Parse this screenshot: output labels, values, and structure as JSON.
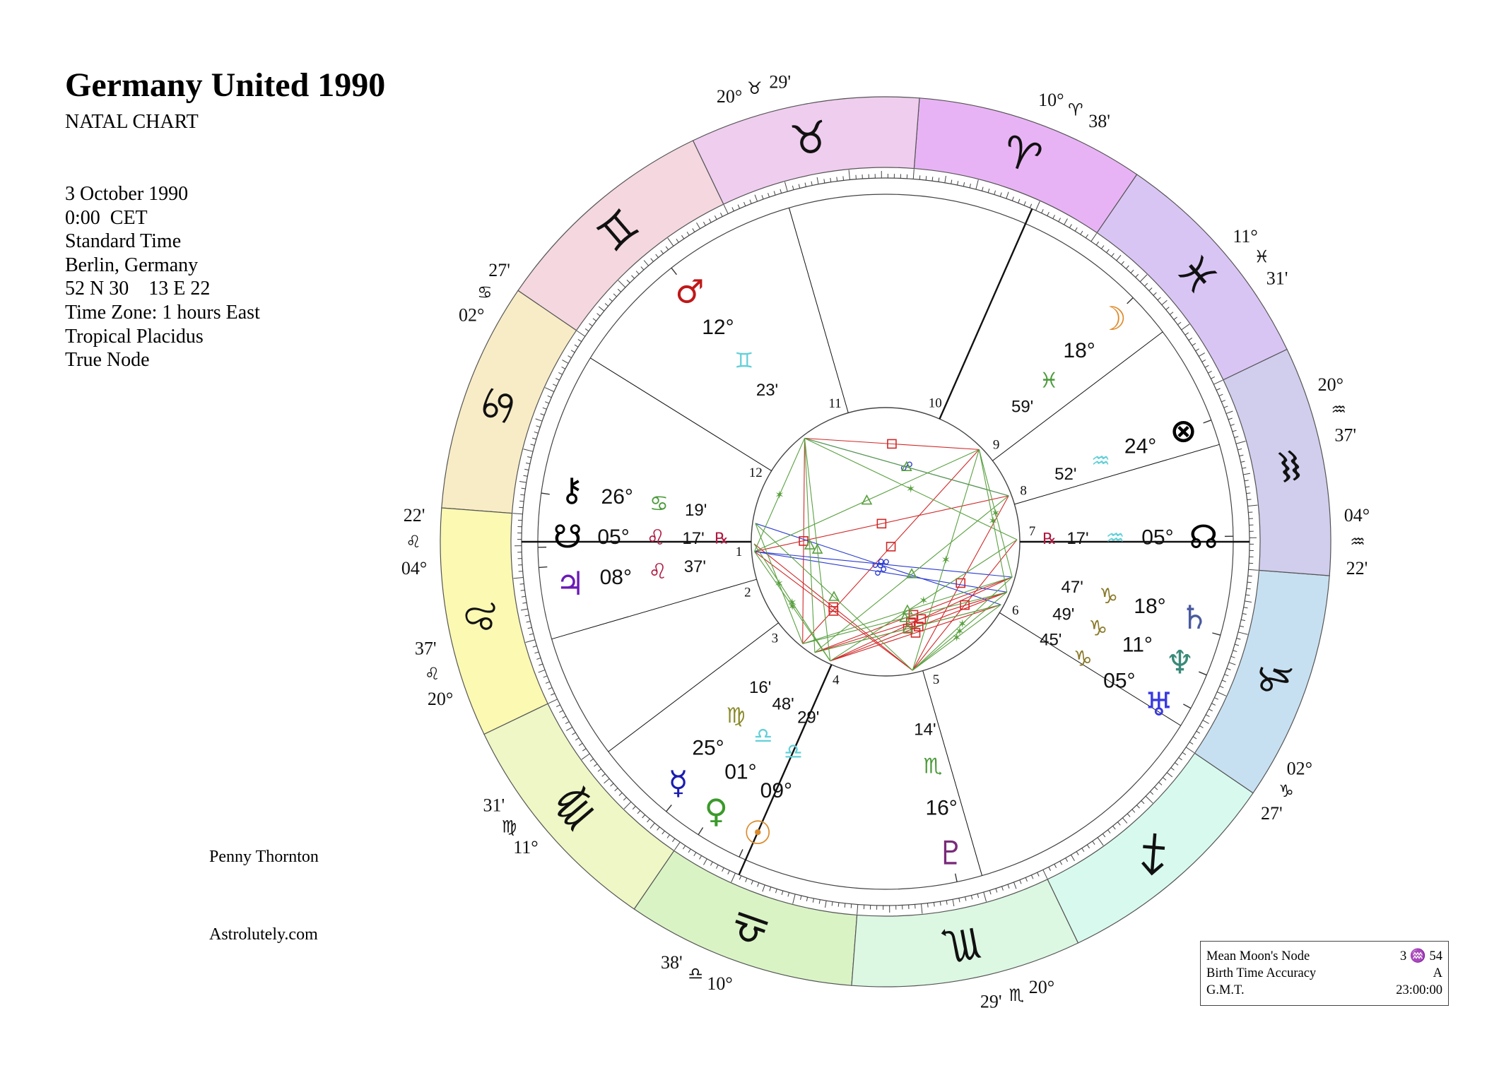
{
  "header": {
    "title": "Germany United 1990",
    "subtitle": "NATAL CHART"
  },
  "details": [
    "3 October 1990",
    "0:00  CET",
    "Standard Time",
    "Berlin, Germany",
    "52 N 30    13 E 22",
    "Time Zone: 1 hours East",
    "Tropical Placidus",
    "True Node"
  ],
  "footer": {
    "author": "Penny Thornton",
    "site": "Astrolutely.com"
  },
  "info_box": [
    {
      "label": "Mean Moon's Node",
      "value": "3 ♒ 54"
    },
    {
      "label": "Birth Time Accuracy",
      "value": "A"
    },
    {
      "label": "G.M.T.",
      "value": "23:00:00"
    }
  ],
  "ascendant_longitude": 124.37,
  "zodiac": [
    {
      "sign": "Aries",
      "glyph": "♈",
      "color": "#e8b3f5"
    },
    {
      "sign": "Taurus",
      "glyph": "♉",
      "color": "#efcdee"
    },
    {
      "sign": "Gemini",
      "glyph": "♊",
      "color": "#f4d7df"
    },
    {
      "sign": "Cancer",
      "glyph": "♋",
      "color": "#f8ecc6"
    },
    {
      "sign": "Leo",
      "glyph": "♌",
      "color": "#fbf9b2"
    },
    {
      "sign": "Virgo",
      "glyph": "♍",
      "color": "#eef7c5"
    },
    {
      "sign": "Libra",
      "glyph": "♎",
      "color": "#d9f3c5"
    },
    {
      "sign": "Scorpio",
      "glyph": "♏",
      "color": "#dcf7e2"
    },
    {
      "sign": "Sagittarius",
      "glyph": "♐",
      "color": "#d8faee"
    },
    {
      "sign": "Capricorn",
      "glyph": "♑",
      "color": "#c7e0f1"
    },
    {
      "sign": "Aquarius",
      "glyph": "♒",
      "color": "#d0cded"
    },
    {
      "sign": "Pisces",
      "glyph": "♓",
      "color": "#d9c5f4"
    }
  ],
  "houses": [
    {
      "number": "1",
      "longitude": 124.37,
      "deg": "04°",
      "sign": "♌",
      "min": "22'"
    },
    {
      "number": "2",
      "longitude": 140.62,
      "deg": "20°",
      "sign": "♌",
      "min": "37'"
    },
    {
      "number": "3",
      "longitude": 161.52,
      "deg": "11°",
      "sign": "♍",
      "min": "31'"
    },
    {
      "number": "4",
      "longitude": 190.63,
      "deg": "10°",
      "sign": "♎",
      "min": "38'"
    },
    {
      "number": "5",
      "longitude": 230.48,
      "deg": "20°",
      "sign": "♏",
      "min": "29'"
    },
    {
      "number": "6",
      "longitude": 272.45,
      "deg": "02°",
      "sign": "♑",
      "min": "27'"
    },
    {
      "number": "7",
      "longitude": 304.37,
      "deg": "04°",
      "sign": "♒",
      "min": "22'"
    },
    {
      "number": "8",
      "longitude": 320.62,
      "deg": "20°",
      "sign": "♒",
      "min": "37'"
    },
    {
      "number": "9",
      "longitude": 341.52,
      "deg": "11°",
      "sign": "♓",
      "min": "31'"
    },
    {
      "number": "10",
      "longitude": 10.63,
      "deg": "10°",
      "sign": "♈",
      "min": "38'"
    },
    {
      "number": "11",
      "longitude": 50.48,
      "deg": "20°",
      "sign": "♉",
      "min": "29'"
    },
    {
      "number": "12",
      "longitude": 92.45,
      "deg": "02°",
      "sign": "♋",
      "min": "27'"
    }
  ],
  "planets": [
    {
      "name": "Sun",
      "glyph": "☉",
      "color": "#d98a2b",
      "longitude": 189.48,
      "deg": "09°",
      "sign": "♎",
      "sign_color": "#62d0d8",
      "min": "29'",
      "retro": ""
    },
    {
      "name": "Moon",
      "glyph": "☽",
      "color": "#e08a2a",
      "longitude": 348.98,
      "deg": "18°",
      "sign": "♓",
      "sign_color": "#4a9a3a",
      "min": "59'",
      "retro": ""
    },
    {
      "name": "Mercury",
      "glyph": "☿",
      "color": "#1b1bb0",
      "longitude": 175.27,
      "deg": "25°",
      "sign": "♍",
      "sign_color": "#8a8a2a",
      "min": "16'",
      "retro": ""
    },
    {
      "name": "Venus",
      "glyph": "♀",
      "color": "#3a9a2a",
      "longitude": 181.8,
      "deg": "01°",
      "sign": "♎",
      "sign_color": "#62d0d8",
      "min": "48'",
      "retro": ""
    },
    {
      "name": "Mars",
      "glyph": "♂",
      "color": "#c01818",
      "longitude": 72.38,
      "deg": "12°",
      "sign": "♊",
      "sign_color": "#62d0d8",
      "min": "23'",
      "retro": ""
    },
    {
      "name": "Jupiter",
      "glyph": "♃",
      "color": "#6a1ab8",
      "longitude": 128.62,
      "deg": "08°",
      "sign": "♌",
      "sign_color": "#b01840",
      "min": "37'",
      "retro": ""
    },
    {
      "name": "Saturn",
      "glyph": "♄",
      "color": "#4a5aa0",
      "longitude": 288.78,
      "deg": "18°",
      "sign": "♑",
      "sign_color": "#8a7a2a",
      "min": "47'",
      "retro": ""
    },
    {
      "name": "Uranus",
      "glyph": "♅",
      "color": "#3a3ae0",
      "longitude": 275.75,
      "deg": "05°",
      "sign": "♑",
      "sign_color": "#8a7a2a",
      "min": "45'",
      "retro": ""
    },
    {
      "name": "Neptune",
      "glyph": "♆",
      "color": "#3a8a7a",
      "longitude": 281.82,
      "deg": "11°",
      "sign": "♑",
      "sign_color": "#8a7a2a",
      "min": "49'",
      "retro": ""
    },
    {
      "name": "Pluto",
      "glyph": "♇",
      "color": "#7a2a7a",
      "longitude": 226.23,
      "deg": "16°",
      "sign": "♏",
      "sign_color": "#4a9a3a",
      "min": "14'",
      "retro": ""
    },
    {
      "name": "North Node",
      "glyph": "☊",
      "color": "#000000",
      "longitude": 305.28,
      "deg": "05°",
      "sign": "♒",
      "sign_color": "#62d0d8",
      "min": "17'",
      "retro": "℞"
    },
    {
      "name": "South Node",
      "glyph": "☋",
      "color": "#000000",
      "longitude": 125.28,
      "deg": "05°",
      "sign": "♌",
      "sign_color": "#b01840",
      "min": "17'",
      "retro": "℞"
    },
    {
      "name": "Chiron",
      "glyph": "⚷",
      "color": "#000000",
      "longitude": 116.32,
      "deg": "26°",
      "sign": "♋",
      "sign_color": "#4a9a3a",
      "min": "19'",
      "retro": ""
    },
    {
      "name": "Part of Fortune",
      "glyph": "⊗",
      "color": "#000000",
      "longitude": 324.87,
      "deg": "24°",
      "sign": "♒",
      "sign_color": "#62d0d8",
      "min": "52'",
      "retro": ""
    }
  ],
  "aspect_colors": {
    "sextile": "#5aa040",
    "trine": "#5aa040",
    "square": "#d02828",
    "opposition": "#2a3ad0"
  },
  "aspects": [
    {
      "type": "square",
      "a": "Sun",
      "b": "Saturn"
    },
    {
      "type": "square",
      "a": "Sun",
      "b": "Uranus"
    },
    {
      "type": "square",
      "a": "Sun",
      "b": "Neptune"
    },
    {
      "type": "square",
      "a": "Venus",
      "b": "Uranus"
    },
    {
      "type": "square",
      "a": "Venus",
      "b": "Neptune"
    },
    {
      "type": "square",
      "a": "Venus",
      "b": "Saturn"
    },
    {
      "type": "square",
      "a": "Mercury",
      "b": "Moon"
    },
    {
      "type": "square",
      "a": "Moon",
      "b": "Mars"
    },
    {
      "type": "square",
      "a": "Mars",
      "b": "Mercury"
    },
    {
      "type": "square",
      "a": "Pluto",
      "b": "Jupiter"
    },
    {
      "type": "square",
      "a": "Pluto",
      "b": "North Node"
    },
    {
      "type": "square",
      "a": "Pluto",
      "b": "South Node"
    },
    {
      "type": "square",
      "a": "Pluto",
      "b": "Part of Fortune"
    },
    {
      "type": "square",
      "a": "Part of Fortune",
      "b": "Jupiter"
    },
    {
      "type": "opposition",
      "a": "Mars",
      "b": "Part of Fortune"
    },
    {
      "type": "opposition",
      "a": "Jupiter",
      "b": "Saturn"
    },
    {
      "type": "opposition",
      "a": "Jupiter",
      "b": "Neptune"
    },
    {
      "type": "opposition",
      "a": "Chiron",
      "b": "Uranus"
    },
    {
      "type": "trine",
      "a": "Mars",
      "b": "Sun"
    },
    {
      "type": "trine",
      "a": "Mars",
      "b": "Venus"
    },
    {
      "type": "trine",
      "a": "Mars",
      "b": "Part of Fortune"
    },
    {
      "type": "trine",
      "a": "Jupiter",
      "b": "Moon"
    },
    {
      "type": "trine",
      "a": "Saturn",
      "b": "Mercury"
    },
    {
      "type": "trine",
      "a": "Neptune",
      "b": "Mercury"
    },
    {
      "type": "trine",
      "a": "Uranus",
      "b": "Venus"
    },
    {
      "type": "trine",
      "a": "Chiron",
      "b": "Pluto"
    },
    {
      "type": "trine",
      "a": "Venus",
      "b": "Part of Fortune"
    },
    {
      "type": "sextile",
      "a": "Mars",
      "b": "North Node"
    },
    {
      "type": "sextile",
      "a": "Mars",
      "b": "Jupiter"
    },
    {
      "type": "sextile",
      "a": "Sun",
      "b": "North Node"
    },
    {
      "type": "sextile",
      "a": "Sun",
      "b": "South Node"
    },
    {
      "type": "sextile",
      "a": "Sun",
      "b": "Jupiter"
    },
    {
      "type": "sextile",
      "a": "Moon",
      "b": "Pluto"
    },
    {
      "type": "sextile",
      "a": "Moon",
      "b": "Neptune"
    },
    {
      "type": "sextile",
      "a": "Moon",
      "b": "Saturn"
    },
    {
      "type": "sextile",
      "a": "Mercury",
      "b": "Chiron"
    },
    {
      "type": "sextile",
      "a": "Pluto",
      "b": "Neptune"
    },
    {
      "type": "sextile",
      "a": "Pluto",
      "b": "Saturn"
    },
    {
      "type": "sextile",
      "a": "Pluto",
      "b": "Uranus"
    }
  ]
}
